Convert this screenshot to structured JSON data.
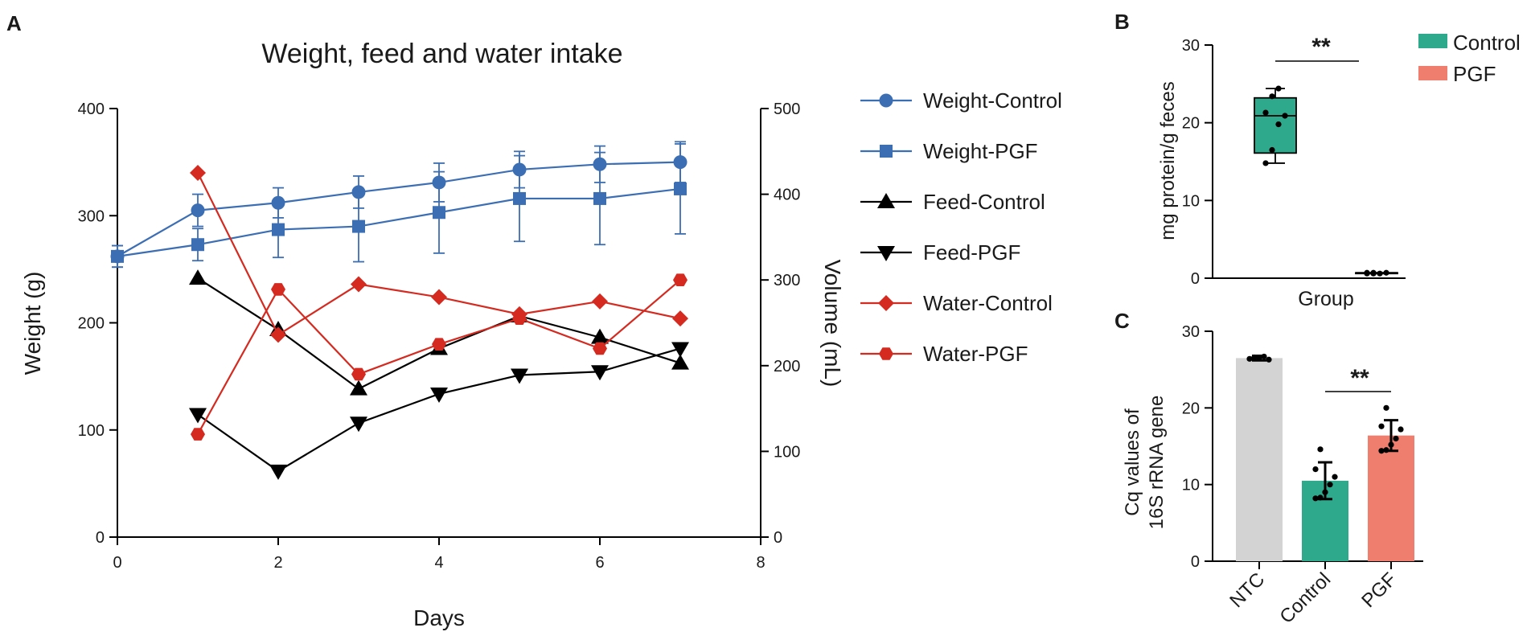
{
  "chart_data": [
    {
      "panel": "A",
      "type": "line",
      "title": "Weight, feed and water intake",
      "xlabel": "Days",
      "ylabel": "Weight (g)",
      "y2label": "Volume (mL)",
      "xlim": [
        0,
        8
      ],
      "ylim": [
        0,
        400
      ],
      "y2lim": [
        0,
        500
      ],
      "xticks": [
        "0",
        "2",
        "4",
        "6",
        "8"
      ],
      "yticks": [
        "0",
        "100",
        "200",
        "300",
        "400"
      ],
      "y2ticks": [
        "0",
        "100",
        "200",
        "300",
        "400",
        "500"
      ],
      "legend_position": "right",
      "series": [
        {
          "name": "Weight-Control",
          "axis": "left",
          "color": "#3c6eb4",
          "marker": "circle",
          "x": [
            0,
            1,
            2,
            3,
            4,
            5,
            6,
            7
          ],
          "values": [
            262,
            305,
            312,
            322,
            331,
            343,
            348,
            350
          ],
          "err": [
            10,
            15,
            14,
            15,
            18,
            17,
            17,
            19
          ]
        },
        {
          "name": "Weight-PGF",
          "axis": "left",
          "color": "#3c6eb4",
          "marker": "square",
          "x": [
            0,
            1,
            2,
            3,
            4,
            5,
            6,
            7
          ],
          "values": [
            262,
            273,
            287,
            290,
            303,
            316,
            316,
            325
          ],
          "err": [
            10,
            15,
            26,
            33,
            38,
            40,
            43,
            42
          ]
        },
        {
          "name": "Feed-Control",
          "axis": "right",
          "color": "#000000",
          "marker": "triangle-up",
          "x": [
            1,
            2,
            3,
            4,
            5,
            6,
            7
          ],
          "values": [
            302,
            242,
            173,
            220,
            258,
            233,
            203
          ]
        },
        {
          "name": "Feed-PGF",
          "axis": "right",
          "color": "#000000",
          "marker": "triangle-down",
          "x": [
            1,
            2,
            3,
            4,
            5,
            6,
            7
          ],
          "values": [
            143,
            77,
            133,
            167,
            189,
            193,
            220
          ]
        },
        {
          "name": "Water-Control",
          "axis": "right",
          "color": "#d42a20",
          "marker": "diamond",
          "x": [
            1,
            2,
            3,
            4,
            5,
            6,
            7
          ],
          "values": [
            425,
            236,
            295,
            280,
            260,
            275,
            255
          ]
        },
        {
          "name": "Water-PGF",
          "axis": "right",
          "color": "#d42a20",
          "marker": "hexagon",
          "x": [
            1,
            2,
            3,
            4,
            5,
            6,
            7
          ],
          "values": [
            120,
            289,
            190,
            225,
            255,
            220,
            300
          ]
        }
      ]
    },
    {
      "panel": "B",
      "type": "box",
      "xlabel": "Group",
      "ylabel": "mg protein/g feces",
      "ylim": [
        0,
        30
      ],
      "yticks": [
        "0",
        "10",
        "20",
        "30"
      ],
      "significance": "**",
      "legend_position": "top-right",
      "groups": [
        {
          "name": "Control",
          "color": "#2fa98c",
          "min": 14.8,
          "q1": 16.1,
          "median": 20.9,
          "q3": 23.2,
          "max": 24.4,
          "points": [
            14.8,
            16.5,
            19.8,
            20.9,
            21.3,
            23.4,
            24.4
          ]
        },
        {
          "name": "PGF",
          "color": "#f07e6e",
          "min": 0.6,
          "q1": 0.6,
          "median": 0.7,
          "q3": 0.7,
          "max": 0.7,
          "points": [
            0.6,
            0.7,
            0.6,
            0.7,
            0.7,
            0.6
          ]
        }
      ]
    },
    {
      "panel": "C",
      "type": "bar",
      "ylabel": "Cq values of 16S rRNA gene",
      "ylim": [
        0,
        30
      ],
      "yticks": [
        "0",
        "10",
        "20",
        "30"
      ],
      "categories": [
        "NTC",
        "Control",
        "PGF"
      ],
      "values": [
        26.5,
        10.5,
        16.4
      ],
      "err": [
        0.3,
        2.4,
        2.0
      ],
      "colors": [
        "#d3d3d3",
        "#2fa98c",
        "#f07e6e"
      ],
      "points": [
        [
          26.4,
          26.6,
          26.5,
          26.7,
          26.3
        ],
        [
          8.2,
          8.3,
          9.0,
          10.0,
          11.0,
          12.0,
          14.6
        ],
        [
          14.4,
          14.5,
          15.2,
          16.0,
          17.2,
          17.6,
          20.0
        ]
      ],
      "significance": "**"
    }
  ],
  "text": {
    "panel_a": "A",
    "panel_b": "B",
    "panel_c": "C",
    "a_title": "Weight, feed and water intake",
    "a_xlabel": "Days",
    "a_ylabel": "Weight (g)",
    "a_y2label": "Volume (mL)",
    "b_ylabel": "mg protein/g feces",
    "b_xlabel": "Group",
    "b_sig": "**",
    "b_legend_control": "Control",
    "b_legend_pgf": "PGF",
    "c_ylabel_line1": "Cq values of",
    "c_ylabel_line2": "16S rRNA gene",
    "c_sig": "**"
  }
}
